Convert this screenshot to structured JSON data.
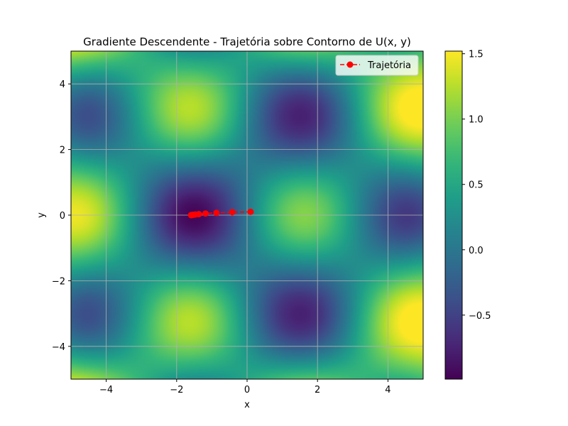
{
  "chart_data": {
    "type": "heatmap",
    "title": "Gradiente Descendente - Trajetória sobre Contorno de U(x, y)",
    "xlabel": "x",
    "ylabel": "y",
    "xlim": [
      -5,
      5
    ],
    "ylim": [
      -5,
      5
    ],
    "xticks": [
      -4,
      -2,
      0,
      2,
      4
    ],
    "yticks": [
      -4,
      -2,
      0,
      2,
      4
    ],
    "xtick_labels": [
      "−4",
      "−2",
      "0",
      "2",
      "4"
    ],
    "ytick_labels": [
      "−4",
      "−2",
      "0",
      "2",
      "4"
    ],
    "grid": true,
    "colormap": "viridis",
    "field_description": "sin(x) * cos(y) plus a small radial term",
    "colorbar": {
      "vmin": -0.99,
      "vmax": 1.52,
      "ticks": [
        -0.5,
        0.0,
        0.5,
        1.0,
        1.5
      ],
      "tick_labels": [
        "−0.5",
        "0.0",
        "0.5",
        "1.0",
        "1.5"
      ]
    },
    "series": [
      {
        "name": "Trajetória",
        "type": "line",
        "color": "#ff0000",
        "marker": "circle",
        "linestyle": "dashed",
        "x": [
          0.1,
          -0.42,
          -0.87,
          -1.18,
          -1.37,
          -1.47,
          -1.53,
          -1.56,
          -1.58,
          -1.59
        ],
        "y": [
          0.1,
          0.09,
          0.07,
          0.05,
          0.03,
          0.02,
          0.01,
          0.005,
          0.002,
          0.001
        ]
      }
    ],
    "legend_position": "upper right"
  }
}
